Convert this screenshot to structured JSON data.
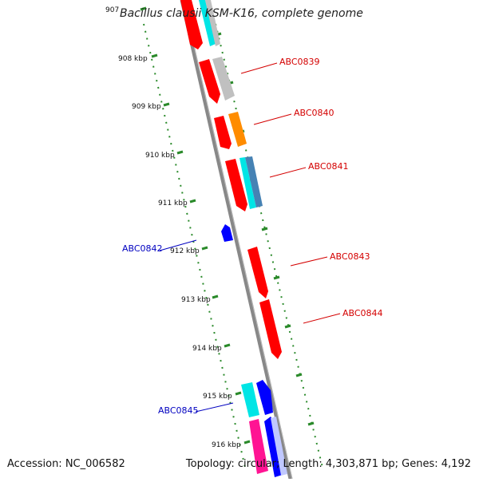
{
  "title": "Bacillus clausii KSM-K16, complete genome",
  "footer": {
    "accession": "Accession: NC_006582",
    "summary": "Topology: circular; Length: 4,303,871 bp; Genes: 4,192"
  },
  "ruler_ticks": [
    "907",
    "908 kbp",
    "909 kbp",
    "910 kbp",
    "911 kbp",
    "912 kbp",
    "913 kbp",
    "914 kbp",
    "915 kbp",
    "916 kbp"
  ],
  "gene_labels": [
    {
      "text": "ABC0839",
      "color": "#d40000"
    },
    {
      "text": "ABC0840",
      "color": "#d40000"
    },
    {
      "text": "ABC0841",
      "color": "#d40000"
    },
    {
      "text": "ABC0842",
      "color": "#0000c0"
    },
    {
      "text": "ABC0843",
      "color": "#d40000"
    },
    {
      "text": "ABC0844",
      "color": "#d40000"
    },
    {
      "text": "ABC0845",
      "color": "#0000c0"
    }
  ],
  "colors": {
    "forward_cds": "#ff0000",
    "reverse_cds": "#0000ff",
    "backbone": "#888888",
    "ruler": "#2a8a2a",
    "cyan": "#00e5e5",
    "gray": "#c0c0c0",
    "orange": "#ff8c00",
    "steelblue": "#4682b4",
    "pink": "#ff1493"
  }
}
